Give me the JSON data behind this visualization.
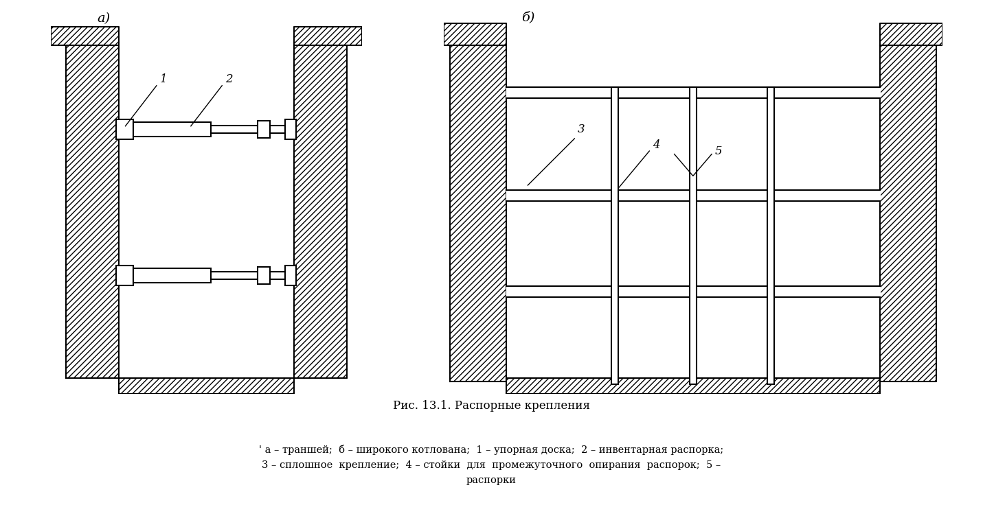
{
  "title": "Рис. 13.1. Распорные крепления",
  "caption_line1": "' а – траншей;  б – широкого котлована;  1 – упорная доска;  2 – инвентарная распорка;",
  "caption_line2": "3 – сплошное  крепление;  4 – стойки  для  промежуточного  опирания  распорок;  5 –",
  "caption_line3": "распорки",
  "label_a": "а)",
  "label_b": "б)",
  "bg_color": "#ffffff",
  "line_color": "#000000",
  "hatch_density": "////",
  "lw_main": 1.5,
  "lw_thin": 1.0
}
